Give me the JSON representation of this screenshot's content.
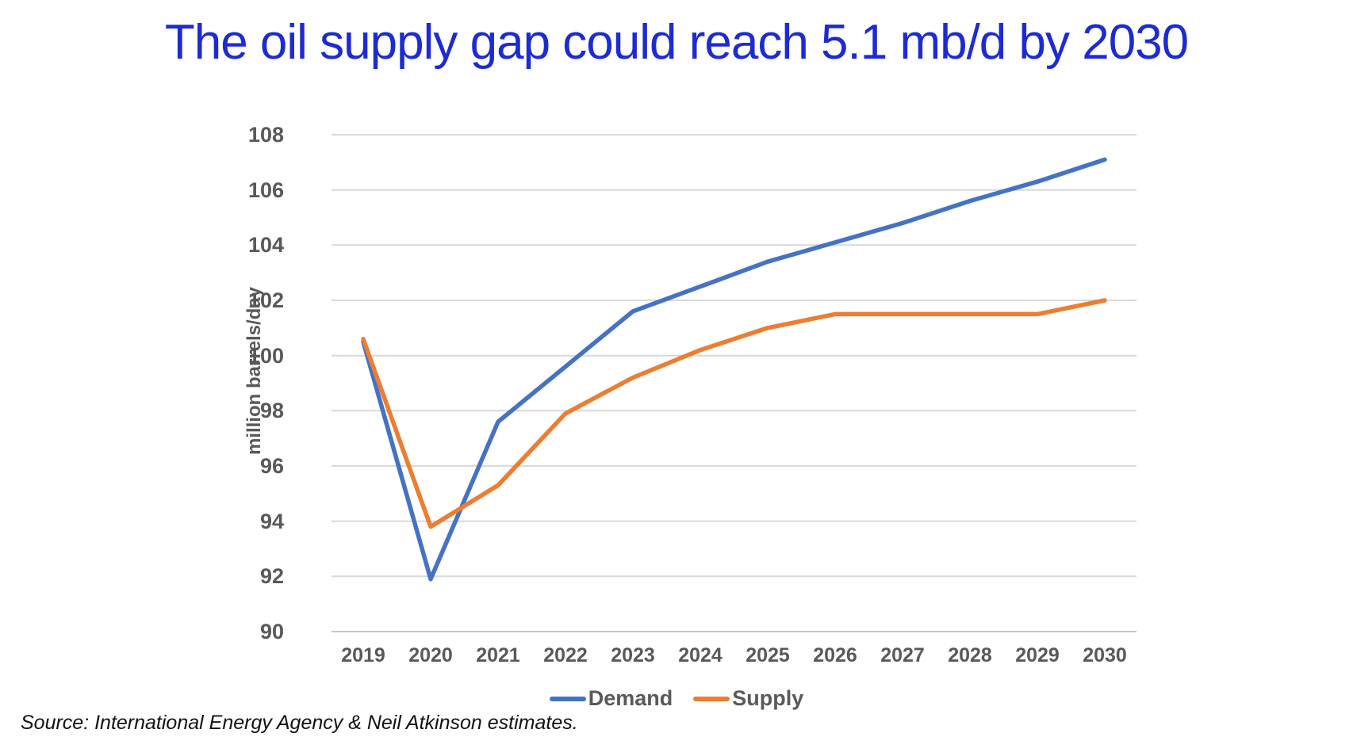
{
  "title": {
    "text": "The oil supply gap could reach 5.1 mb/d by 2030",
    "color": "#1C2BD2"
  },
  "source_note": "Source: International Energy Agency & Neil Atkinson estimates.",
  "colors": {
    "demand_line": "#4472C4",
    "supply_line": "#ED7D31",
    "gridline": "#D9D9D9",
    "axis_line": "#C6C6C6",
    "axis_text": "#595959"
  },
  "chart_data": {
    "type": "line",
    "x": [
      2019,
      2020,
      2021,
      2022,
      2023,
      2024,
      2025,
      2026,
      2027,
      2028,
      2029,
      2030
    ],
    "series": [
      {
        "name": "Demand",
        "color": "#4472C4",
        "values": [
          100.5,
          91.9,
          97.6,
          99.6,
          101.6,
          102.5,
          103.4,
          104.1,
          104.8,
          105.6,
          106.3,
          107.1
        ]
      },
      {
        "name": "Supply",
        "color": "#ED7D31",
        "values": [
          100.6,
          93.8,
          95.3,
          97.9,
          99.2,
          100.2,
          101.0,
          101.5,
          101.5,
          101.5,
          101.5,
          102.0
        ]
      }
    ],
    "title": "",
    "xlabel": "",
    "ylabel": "million barrels/day",
    "ylim": [
      90,
      108
    ],
    "ytick_step": 2,
    "yticks": [
      "90",
      "92",
      "94",
      "96",
      "98",
      "100",
      "102",
      "104",
      "106",
      "108"
    ],
    "grid": true,
    "legend_position": "bottom"
  }
}
